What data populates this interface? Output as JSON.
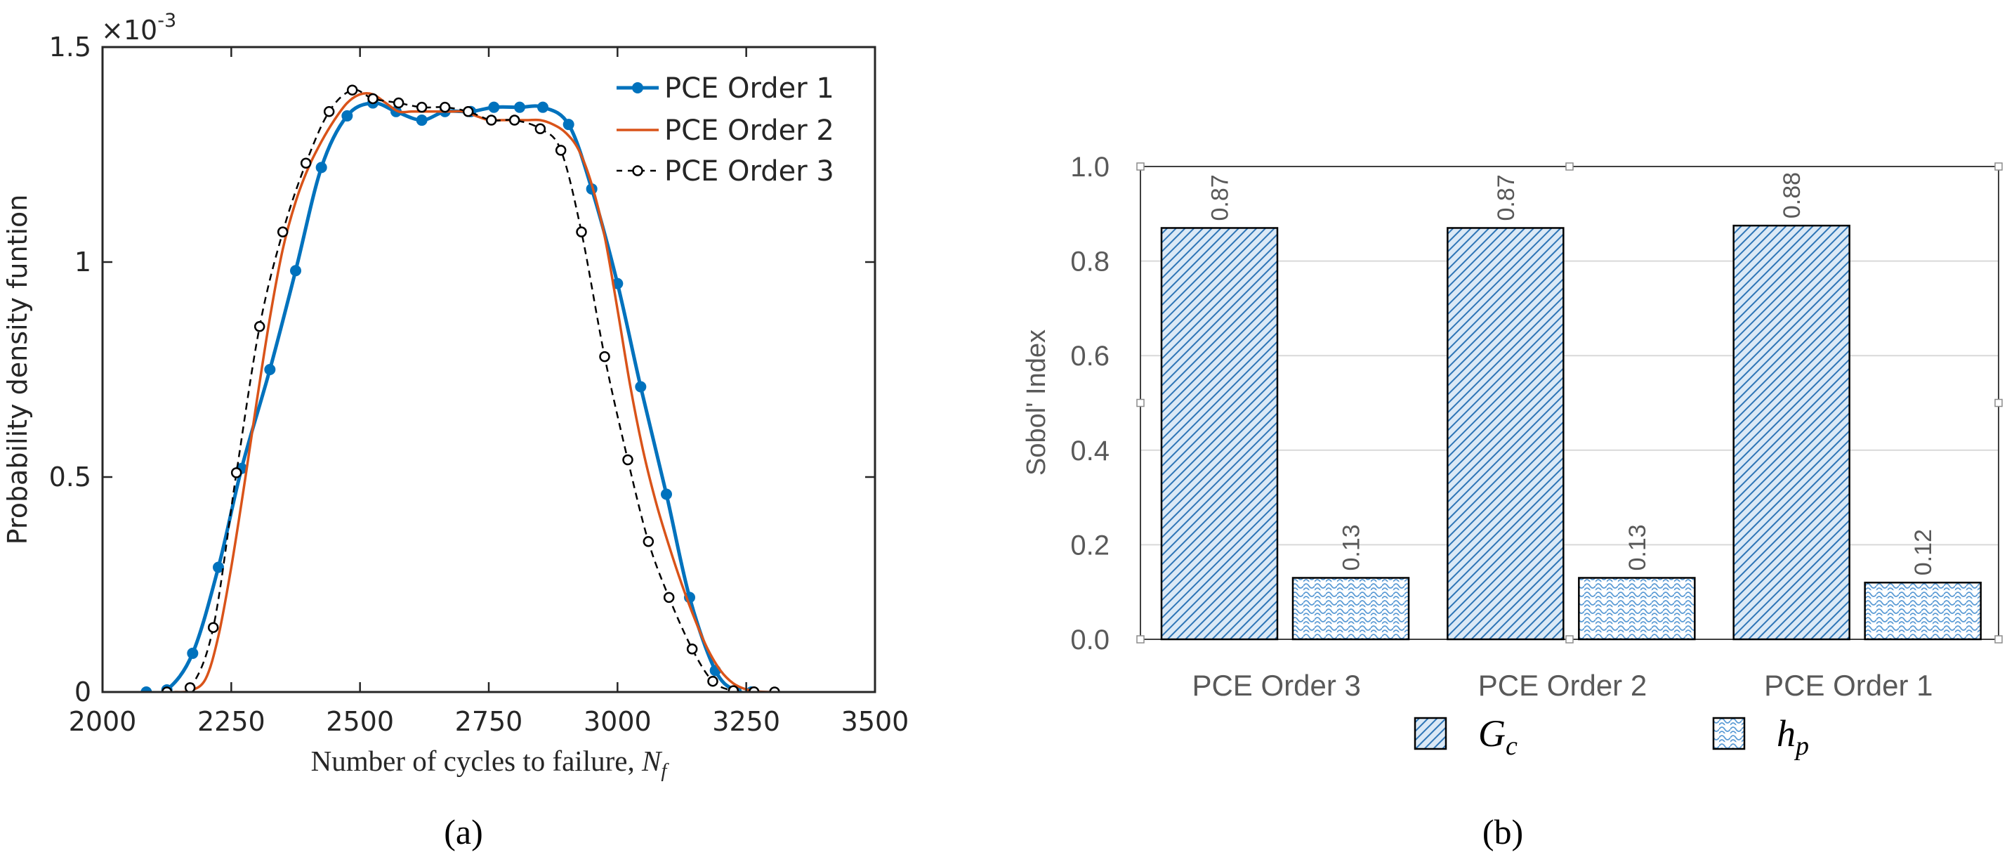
{
  "colors": {
    "order1": "#0072BD",
    "order2": "#D95319",
    "order3": "#000000",
    "bar_fill": "#5B9BD5",
    "bar_line": "#2E75B6",
    "axis_text_b": "#595959",
    "grid_b": "#D9D9D9"
  },
  "chart_data": [
    {
      "type": "line",
      "panel_label": "(a)",
      "xlabel": "Number of cycles to failure,",
      "xlabel_symbol": "N",
      "xlabel_subscript": "f",
      "ylabel": "Probability density funtion",
      "xlim": [
        2000,
        3500
      ],
      "ylim": [
        0,
        0.0015
      ],
      "y_exponent_base": "×10",
      "y_exponent_power": "-3",
      "xticks": [
        2000,
        2250,
        2500,
        2750,
        3000,
        3250,
        3500
      ],
      "yticks": [
        0,
        0.5,
        1,
        1.5
      ],
      "ytick_labels": [
        "0",
        "0.5",
        "1",
        "1.5"
      ],
      "grid": false,
      "legend_position": "top-right",
      "series": [
        {
          "name": "PCE Order 1",
          "style": "solid-dots",
          "x": [
            2085,
            2125,
            2175,
            2225,
            2270,
            2325,
            2375,
            2425,
            2475,
            2525,
            2570,
            2620,
            2665,
            2715,
            2760,
            2810,
            2855,
            2905,
            2950,
            3000,
            3045,
            3095,
            3140,
            3190,
            3230,
            3260
          ],
          "y": [
            0,
            5e-06,
            9e-05,
            0.00029,
            0.00052,
            0.00075,
            0.00098,
            0.00122,
            0.00134,
            0.00137,
            0.00135,
            0.00133,
            0.00135,
            0.00135,
            0.00136,
            0.00136,
            0.00136,
            0.00132,
            0.00117,
            0.00095,
            0.00071,
            0.00046,
            0.00022,
            5e-05,
            3e-06,
            0
          ]
        },
        {
          "name": "PCE Order 2",
          "style": "solid",
          "x": [
            2140,
            2170,
            2200,
            2225,
            2250,
            2275,
            2300,
            2325,
            2350,
            2375,
            2400,
            2425,
            2450,
            2475,
            2500,
            2525,
            2550,
            2575,
            2600,
            2625,
            2650,
            2675,
            2700,
            2725,
            2750,
            2775,
            2800,
            2825,
            2850,
            2875,
            2900,
            2925,
            2950,
            2975,
            3000,
            3025,
            3050,
            3075,
            3100,
            3125,
            3150,
            3175,
            3200,
            3225,
            3250,
            3275,
            3300
          ],
          "y": [
            0,
            3e-06,
            3e-05,
            0.00013,
            0.00029,
            0.00048,
            0.00068,
            0.00087,
            0.00103,
            0.00114,
            0.00122,
            0.00128,
            0.00133,
            0.00137,
            0.00139,
            0.00139,
            0.00137,
            0.00135,
            0.00135,
            0.00135,
            0.00135,
            0.00135,
            0.00135,
            0.00134,
            0.00133,
            0.00133,
            0.00133,
            0.00133,
            0.00133,
            0.00132,
            0.0013,
            0.00126,
            0.00118,
            0.00106,
            0.00089,
            0.00071,
            0.00056,
            0.00044,
            0.00034,
            0.00025,
            0.00017,
            0.0001,
            5e-05,
            2e-05,
            6e-06,
            1e-06,
            0
          ]
        },
        {
          "name": "PCE Order 3",
          "style": "dashed-circles",
          "x": [
            2125,
            2170,
            2215,
            2260,
            2305,
            2350,
            2395,
            2440,
            2485,
            2525,
            2575,
            2620,
            2665,
            2710,
            2755,
            2800,
            2850,
            2890,
            2930,
            2975,
            3020,
            3060,
            3100,
            3145,
            3185,
            3225,
            3265,
            3305
          ],
          "y": [
            0,
            1e-05,
            0.00015,
            0.00051,
            0.00085,
            0.00107,
            0.00123,
            0.00135,
            0.0014,
            0.00138,
            0.00137,
            0.00136,
            0.00136,
            0.00135,
            0.00133,
            0.00133,
            0.00131,
            0.00126,
            0.00107,
            0.00078,
            0.00054,
            0.00035,
            0.00022,
            0.0001,
            2.5e-05,
            3e-06,
            5e-07,
            0
          ]
        }
      ]
    },
    {
      "type": "bar",
      "panel_label": "(b)",
      "ylabel": "Sobol' Index",
      "ylim": [
        0,
        1
      ],
      "yticks": [
        0,
        0.2,
        0.4,
        0.6,
        0.8,
        1
      ],
      "ytick_labels": [
        "0.0",
        "0.2",
        "0.4",
        "0.6",
        "0.8",
        "1.0"
      ],
      "grid": true,
      "legend_position": "bottom",
      "categories": [
        "PCE Order 3",
        "PCE Order 2",
        "PCE Order 1"
      ],
      "series": [
        {
          "name": "G",
          "name_subscript": "c",
          "pattern": "diagonal",
          "values": [
            0.87,
            0.87,
            0.875
          ],
          "labels": [
            "0.87",
            "0.87",
            "0.88"
          ]
        },
        {
          "name": "h",
          "name_subscript": "p",
          "pattern": "scales",
          "values": [
            0.13,
            0.13,
            0.12
          ],
          "labels": [
            "0.13",
            "0.13",
            "0.12"
          ]
        }
      ]
    }
  ]
}
